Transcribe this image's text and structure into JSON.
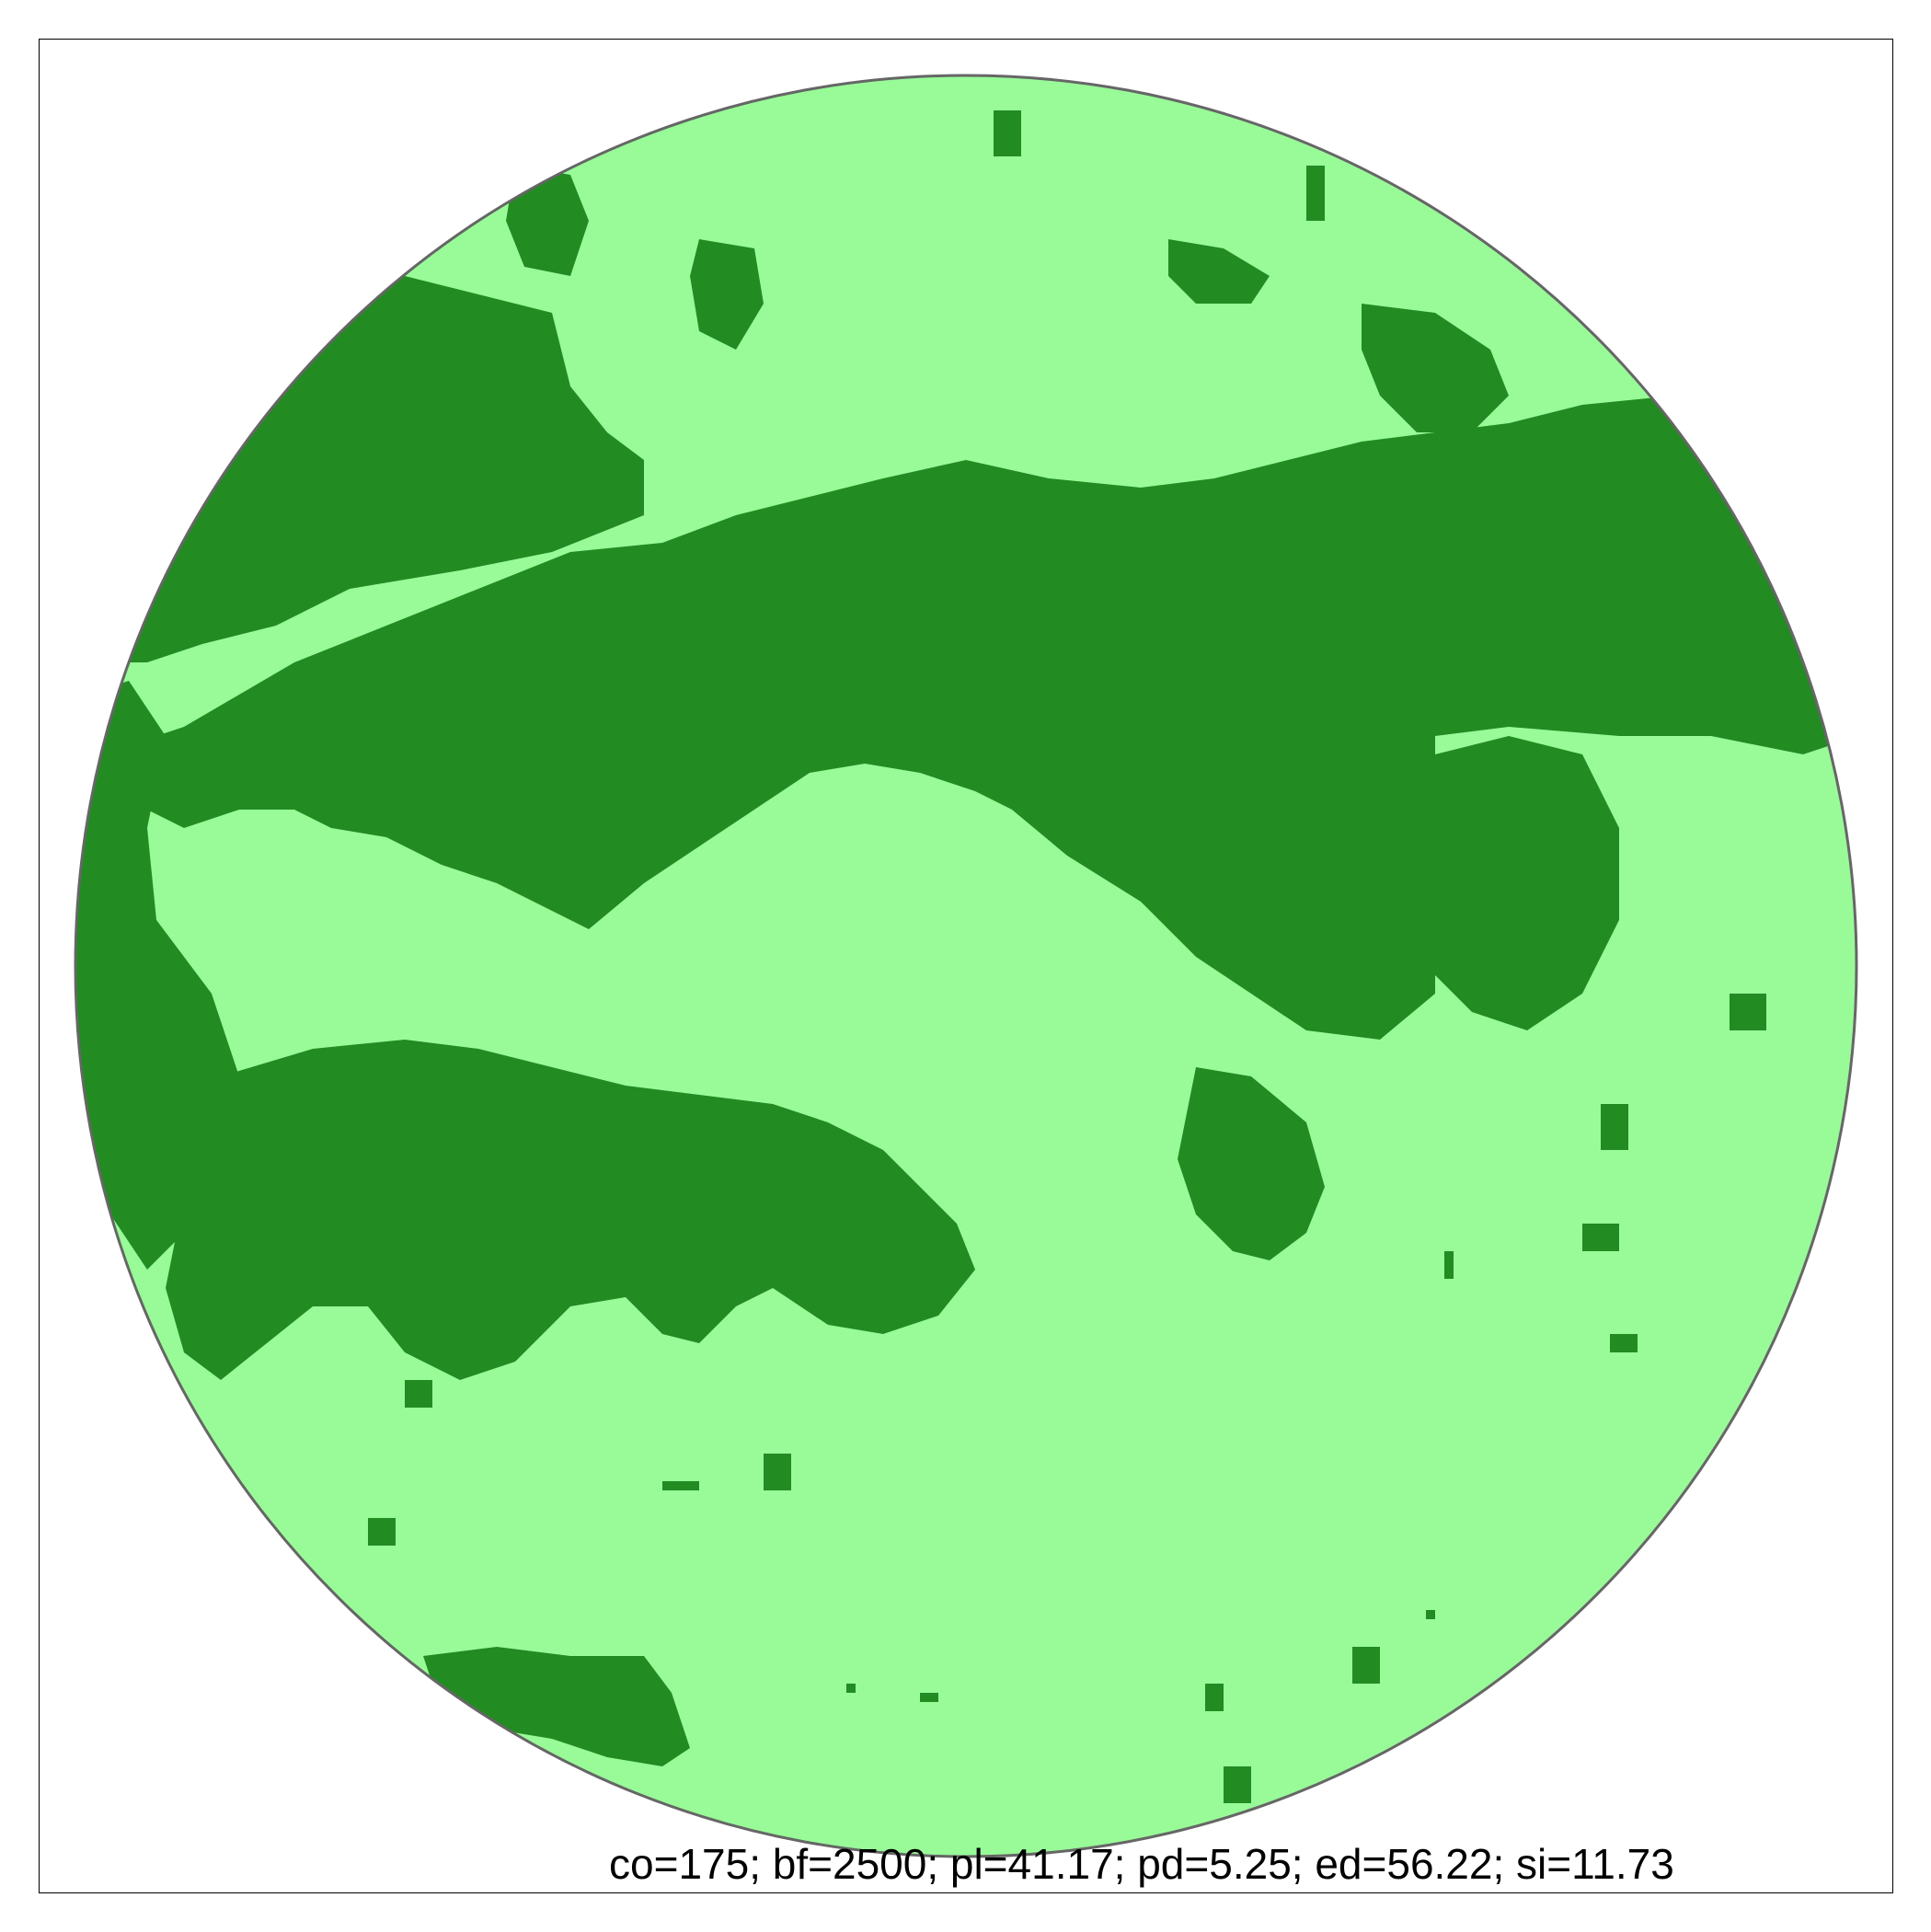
{
  "map": {
    "stats_label": "co=175; bf=2500; pl=41.17; pd=5.25; ed=56.22; si=11.73",
    "colors": {
      "background_patch": "#98fb98",
      "forest_patch": "#228b22",
      "buffer_outline": "#666666",
      "frame": "#000000"
    }
  }
}
